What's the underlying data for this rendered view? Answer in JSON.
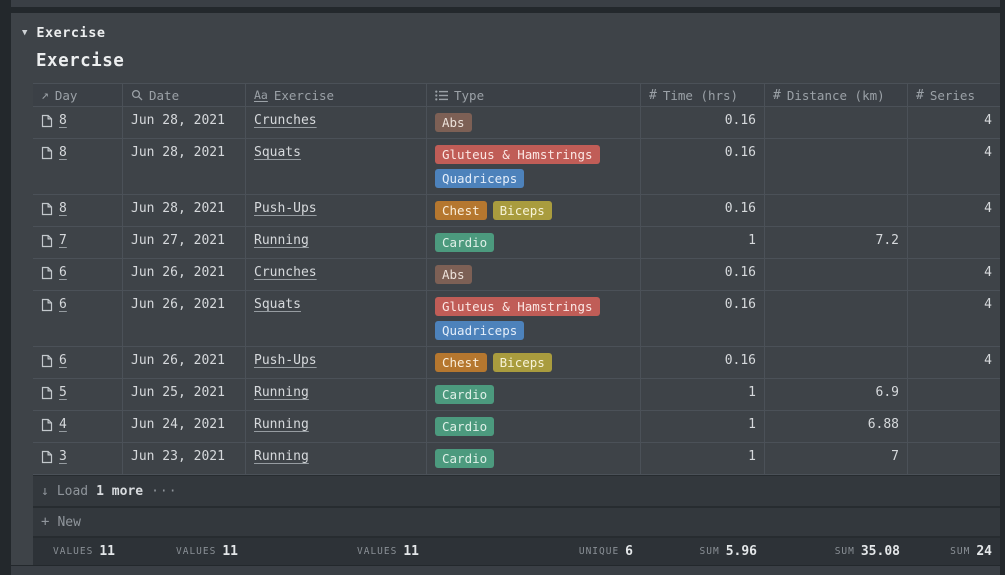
{
  "collection": {
    "toggle_label": "Exercise",
    "title": "Exercise"
  },
  "table": {
    "columns": [
      {
        "key": "day",
        "label": "Day",
        "icon": "relation-arrow-icon",
        "type": "link"
      },
      {
        "key": "date",
        "label": "Date",
        "icon": "rollup-magnifier-icon",
        "type": "text"
      },
      {
        "key": "exercise",
        "label": "Exercise",
        "icon": "title-aa-icon",
        "type": "page"
      },
      {
        "key": "type",
        "label": "Type",
        "icon": "multi-select-list-icon",
        "type": "tags"
      },
      {
        "key": "time",
        "label": "Time (hrs)",
        "icon": "number-hash-icon",
        "type": "number"
      },
      {
        "key": "distance",
        "label": "Distance (km)",
        "icon": "number-hash-icon",
        "type": "number"
      },
      {
        "key": "series",
        "label": "Series",
        "icon": "number-hash-icon",
        "type": "number"
      }
    ],
    "rows": [
      {
        "day": "8",
        "date": "Jun 28, 2021",
        "exercise": "Crunches",
        "tags": [
          {
            "label": "Abs",
            "color": "brown"
          }
        ],
        "time": "0.16",
        "distance": "",
        "series": "4"
      },
      {
        "day": "8",
        "date": "Jun 28, 2021",
        "exercise": "Squats",
        "tags": [
          {
            "label": "Gluteus & Hamstrings",
            "color": "red"
          },
          {
            "label": "Quadriceps",
            "color": "blue"
          }
        ],
        "time": "0.16",
        "distance": "",
        "series": "4"
      },
      {
        "day": "8",
        "date": "Jun 28, 2021",
        "exercise": "Push-Ups",
        "tags": [
          {
            "label": "Chest",
            "color": "orange"
          },
          {
            "label": "Biceps",
            "color": "yellow"
          }
        ],
        "time": "0.16",
        "distance": "",
        "series": "4"
      },
      {
        "day": "7",
        "date": "Jun 27, 2021",
        "exercise": "Running",
        "tags": [
          {
            "label": "Cardio",
            "color": "green"
          }
        ],
        "time": "1",
        "distance": "7.2",
        "series": ""
      },
      {
        "day": "6",
        "date": "Jun 26, 2021",
        "exercise": "Crunches",
        "tags": [
          {
            "label": "Abs",
            "color": "brown"
          }
        ],
        "time": "0.16",
        "distance": "",
        "series": "4"
      },
      {
        "day": "6",
        "date": "Jun 26, 2021",
        "exercise": "Squats",
        "tags": [
          {
            "label": "Gluteus & Hamstrings",
            "color": "red"
          },
          {
            "label": "Quadriceps",
            "color": "blue"
          }
        ],
        "time": "0.16",
        "distance": "",
        "series": "4"
      },
      {
        "day": "6",
        "date": "Jun 26, 2021",
        "exercise": "Push-Ups",
        "tags": [
          {
            "label": "Chest",
            "color": "orange"
          },
          {
            "label": "Biceps",
            "color": "yellow"
          }
        ],
        "time": "0.16",
        "distance": "",
        "series": "4"
      },
      {
        "day": "5",
        "date": "Jun 25, 2021",
        "exercise": "Running",
        "tags": [
          {
            "label": "Cardio",
            "color": "green"
          }
        ],
        "time": "1",
        "distance": "6.9",
        "series": ""
      },
      {
        "day": "4",
        "date": "Jun 24, 2021",
        "exercise": "Running",
        "tags": [
          {
            "label": "Cardio",
            "color": "green"
          }
        ],
        "time": "1",
        "distance": "6.88",
        "series": ""
      },
      {
        "day": "3",
        "date": "Jun 23, 2021",
        "exercise": "Running",
        "tags": [
          {
            "label": "Cardio",
            "color": "green"
          }
        ],
        "time": "1",
        "distance": "7",
        "series": ""
      }
    ],
    "load_more": {
      "prefix": "Load",
      "count": "1 more",
      "dots": "···"
    },
    "new_row": {
      "plus": "+",
      "label": "New"
    },
    "summary": [
      {
        "label": "VALUES",
        "value": "11"
      },
      {
        "label": "VALUES",
        "value": "11"
      },
      {
        "label": "VALUES",
        "value": "11"
      },
      {
        "label": "UNIQUE",
        "value": "6"
      },
      {
        "label": "SUM",
        "value": "5.96"
      },
      {
        "label": "SUM",
        "value": "35.08"
      },
      {
        "label": "SUM",
        "value": "24"
      }
    ]
  },
  "colors": {
    "card_bg": "#3e4348",
    "outer_bg": "#23282c",
    "tag_colors": {
      "brown": {
        "bg": "#7d6055",
        "text": "#ede2db"
      },
      "red": {
        "bg": "#c05d57",
        "text": "#fbe7e4"
      },
      "blue": {
        "bg": "#4d82bb",
        "text": "#e4eefa"
      },
      "orange": {
        "bg": "#b5772f",
        "text": "#faeeda"
      },
      "yellow": {
        "bg": "#a99c3e",
        "text": "#f7f3d7"
      },
      "green": {
        "bg": "#4c9a7e",
        "text": "#dff0e8"
      }
    }
  }
}
